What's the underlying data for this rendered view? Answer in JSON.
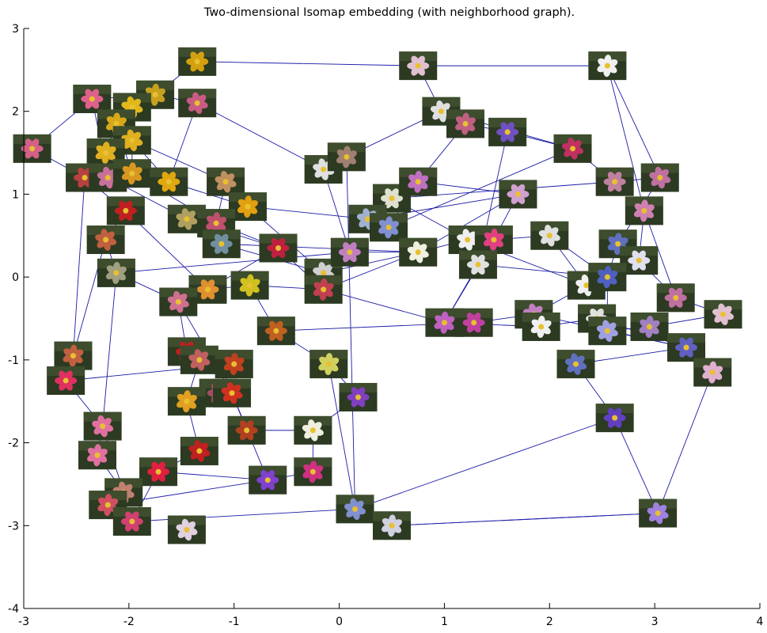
{
  "chart_data": {
    "type": "scatter",
    "title": "Two-dimensional Isomap embedding (with neighborhood graph).",
    "xlabel": "",
    "ylabel": "",
    "xlim": [
      -3,
      4
    ],
    "ylim": [
      -4,
      3
    ],
    "xticks": [
      -3,
      -2,
      -1,
      0,
      1,
      2,
      3,
      4
    ],
    "yticks": [
      -4,
      -3,
      -2,
      -1,
      0,
      1,
      2,
      3
    ],
    "grid": false,
    "marker_style": "flower-photo-thumbnails",
    "points": [
      {
        "x": -1.35,
        "y": 2.6,
        "color": "#d4a010"
      },
      {
        "x": -1.35,
        "y": 2.1,
        "color": "#c85c84"
      },
      {
        "x": -1.75,
        "y": 2.2,
        "color": "#c8a020"
      },
      {
        "x": -2.35,
        "y": 2.15,
        "color": "#e0608c"
      },
      {
        "x": -1.97,
        "y": 2.05,
        "color": "#e0b81c"
      },
      {
        "x": -2.12,
        "y": 1.85,
        "color": "#d8a818"
      },
      {
        "x": -2.92,
        "y": 1.55,
        "color": "#d46088"
      },
      {
        "x": -1.97,
        "y": 1.65,
        "color": "#e0b020"
      },
      {
        "x": -2.22,
        "y": 1.5,
        "color": "#e0b020"
      },
      {
        "x": -2.42,
        "y": 1.2,
        "color": "#b84040"
      },
      {
        "x": -2.2,
        "y": 1.2,
        "color": "#c8709c"
      },
      {
        "x": -1.97,
        "y": 1.25,
        "color": "#d89820"
      },
      {
        "x": -1.62,
        "y": 1.15,
        "color": "#e0a810"
      },
      {
        "x": -1.08,
        "y": 1.15,
        "color": "#c09060"
      },
      {
        "x": -0.87,
        "y": 0.85,
        "color": "#e0a010"
      },
      {
        "x": -2.03,
        "y": 0.8,
        "color": "#c02020"
      },
      {
        "x": -1.45,
        "y": 0.7,
        "color": "#b0a060"
      },
      {
        "x": -1.17,
        "y": 0.65,
        "color": "#c05070"
      },
      {
        "x": -1.12,
        "y": 0.4,
        "color": "#7090a0"
      },
      {
        "x": -2.22,
        "y": 0.45,
        "color": "#c06040"
      },
      {
        "x": -2.12,
        "y": 0.05,
        "color": "#a0a080"
      },
      {
        "x": -1.25,
        "y": -0.15,
        "color": "#e09030"
      },
      {
        "x": -1.53,
        "y": -0.3,
        "color": "#d07090"
      },
      {
        "x": -0.85,
        "y": -0.1,
        "color": "#d0c020"
      },
      {
        "x": -0.58,
        "y": 0.35,
        "color": "#c02040"
      },
      {
        "x": -0.15,
        "y": 0.05,
        "color": "#d0d0d0"
      },
      {
        "x": -0.15,
        "y": -0.15,
        "color": "#c04050"
      },
      {
        "x": -0.6,
        "y": -0.65,
        "color": "#c06020"
      },
      {
        "x": -0.15,
        "y": 1.3,
        "color": "#e0e0e0"
      },
      {
        "x": 0.07,
        "y": 1.45,
        "color": "#a08070"
      },
      {
        "x": 0.5,
        "y": 0.95,
        "color": "#e0e0d0"
      },
      {
        "x": 0.27,
        "y": 0.7,
        "color": "#a0b0d0"
      },
      {
        "x": 0.47,
        "y": 0.6,
        "color": "#8090d0"
      },
      {
        "x": 0.1,
        "y": 0.3,
        "color": "#c080c0"
      },
      {
        "x": 0.75,
        "y": 0.3,
        "color": "#f0f0e0"
      },
      {
        "x": 0.75,
        "y": 1.15,
        "color": "#c070c0"
      },
      {
        "x": 0.75,
        "y": 2.55,
        "color": "#e0c0d0"
      },
      {
        "x": 0.97,
        "y": 2.0,
        "color": "#e0e0e0"
      },
      {
        "x": 1.2,
        "y": 1.85,
        "color": "#c06080"
      },
      {
        "x": 1.6,
        "y": 1.75,
        "color": "#7050c0"
      },
      {
        "x": 2.22,
        "y": 1.55,
        "color": "#c03060"
      },
      {
        "x": 2.55,
        "y": 2.55,
        "color": "#f0f0f0"
      },
      {
        "x": 2.62,
        "y": 1.15,
        "color": "#c080a0"
      },
      {
        "x": 3.05,
        "y": 1.2,
        "color": "#c070a0"
      },
      {
        "x": 2.9,
        "y": 0.8,
        "color": "#d080b0"
      },
      {
        "x": 1.7,
        "y": 1.0,
        "color": "#d0a0d0"
      },
      {
        "x": 1.22,
        "y": 0.45,
        "color": "#f0f0f0"
      },
      {
        "x": 1.47,
        "y": 0.45,
        "color": "#e04080"
      },
      {
        "x": 1.32,
        "y": 0.15,
        "color": "#e0e0e0"
      },
      {
        "x": 2.0,
        "y": 0.5,
        "color": "#e0e0e0"
      },
      {
        "x": 2.65,
        "y": 0.4,
        "color": "#6070c0"
      },
      {
        "x": 2.85,
        "y": 0.2,
        "color": "#e0e0f0"
      },
      {
        "x": 2.35,
        "y": -0.1,
        "color": "#f0f0f0"
      },
      {
        "x": 2.55,
        "y": 0.0,
        "color": "#5060c0"
      },
      {
        "x": 3.2,
        "y": -0.25,
        "color": "#c070a0"
      },
      {
        "x": 3.65,
        "y": -0.45,
        "color": "#e0c0d0"
      },
      {
        "x": 1.0,
        "y": -0.55,
        "color": "#c060c0"
      },
      {
        "x": 1.28,
        "y": -0.55,
        "color": "#c040a0"
      },
      {
        "x": 1.85,
        "y": -0.45,
        "color": "#c080c0"
      },
      {
        "x": 1.92,
        "y": -0.6,
        "color": "#f0f0f0"
      },
      {
        "x": 2.45,
        "y": -0.5,
        "color": "#e0e0e0"
      },
      {
        "x": 2.55,
        "y": -0.65,
        "color": "#a0a0e0"
      },
      {
        "x": 2.95,
        "y": -0.6,
        "color": "#a080c0"
      },
      {
        "x": 3.3,
        "y": -0.85,
        "color": "#6060c0"
      },
      {
        "x": 2.25,
        "y": -1.05,
        "color": "#6070c0"
      },
      {
        "x": 3.55,
        "y": -1.15,
        "color": "#e0b0d0"
      },
      {
        "x": 2.62,
        "y": -1.7,
        "color": "#6040c0"
      },
      {
        "x": 3.03,
        "y": -2.85,
        "color": "#a080e0"
      },
      {
        "x": -2.53,
        "y": -0.95,
        "color": "#c06040"
      },
      {
        "x": -2.6,
        "y": -1.25,
        "color": "#e03060"
      },
      {
        "x": -2.25,
        "y": -1.8,
        "color": "#e070a0"
      },
      {
        "x": -2.3,
        "y": -2.15,
        "color": "#e070a0"
      },
      {
        "x": -1.45,
        "y": -0.9,
        "color": "#c02020"
      },
      {
        "x": -1.33,
        "y": -1.0,
        "color": "#c06060"
      },
      {
        "x": -1.0,
        "y": -1.05,
        "color": "#c04020"
      },
      {
        "x": -1.15,
        "y": -1.4,
        "color": "#a05060"
      },
      {
        "x": -1.02,
        "y": -1.4,
        "color": "#d03020"
      },
      {
        "x": -1.45,
        "y": -1.5,
        "color": "#e0a020"
      },
      {
        "x": -0.88,
        "y": -1.85,
        "color": "#b04020"
      },
      {
        "x": -1.33,
        "y": -2.1,
        "color": "#c02020"
      },
      {
        "x": -0.1,
        "y": -1.05,
        "color": "#d0d060"
      },
      {
        "x": 0.18,
        "y": -1.45,
        "color": "#8040c0"
      },
      {
        "x": -0.25,
        "y": -1.85,
        "color": "#f0f0e0"
      },
      {
        "x": -0.25,
        "y": -2.35,
        "color": "#d03080"
      },
      {
        "x": -0.68,
        "y": -2.45,
        "color": "#8040d0"
      },
      {
        "x": 0.15,
        "y": -2.8,
        "color": "#8090d0"
      },
      {
        "x": 0.5,
        "y": -3.0,
        "color": "#d0d0e0"
      },
      {
        "x": -1.72,
        "y": -2.35,
        "color": "#e02040"
      },
      {
        "x": -2.05,
        "y": -2.6,
        "color": "#c08070"
      },
      {
        "x": -2.2,
        "y": -2.75,
        "color": "#d05060"
      },
      {
        "x": -1.97,
        "y": -2.95,
        "color": "#d04070"
      },
      {
        "x": -1.45,
        "y": -3.05,
        "color": "#e0d0e0"
      }
    ],
    "edges": [
      [
        0,
        2
      ],
      [
        0,
        36
      ],
      [
        1,
        2
      ],
      [
        1,
        12
      ],
      [
        1,
        28
      ],
      [
        2,
        3
      ],
      [
        2,
        5
      ],
      [
        3,
        6
      ],
      [
        4,
        7
      ],
      [
        4,
        11
      ],
      [
        5,
        8
      ],
      [
        6,
        9
      ],
      [
        7,
        12
      ],
      [
        8,
        10
      ],
      [
        9,
        15
      ],
      [
        9,
        68
      ],
      [
        10,
        16
      ],
      [
        11,
        17
      ],
      [
        12,
        14
      ],
      [
        13,
        17
      ],
      [
        14,
        25
      ],
      [
        15,
        19
      ],
      [
        16,
        18
      ],
      [
        17,
        24
      ],
      [
        18,
        25
      ],
      [
        19,
        68
      ],
      [
        20,
        22
      ],
      [
        20,
        33
      ],
      [
        21,
        23
      ],
      [
        21,
        24
      ],
      [
        22,
        72
      ],
      [
        23,
        27
      ],
      [
        24,
        26
      ],
      [
        25,
        33
      ],
      [
        26,
        34
      ],
      [
        27,
        80
      ],
      [
        28,
        29
      ],
      [
        28,
        33
      ],
      [
        29,
        85
      ],
      [
        30,
        31
      ],
      [
        30,
        46
      ],
      [
        31,
        32
      ],
      [
        32,
        35
      ],
      [
        33,
        34
      ],
      [
        34,
        46
      ],
      [
        35,
        38
      ],
      [
        35,
        45
      ],
      [
        36,
        37
      ],
      [
        36,
        41
      ],
      [
        37,
        38
      ],
      [
        38,
        39
      ],
      [
        39,
        40
      ],
      [
        39,
        48
      ],
      [
        40,
        42
      ],
      [
        41,
        43
      ],
      [
        41,
        44
      ],
      [
        42,
        43
      ],
      [
        42,
        30
      ],
      [
        43,
        50
      ],
      [
        44,
        54
      ],
      [
        45,
        47
      ],
      [
        46,
        47
      ],
      [
        47,
        49
      ],
      [
        48,
        56
      ],
      [
        49,
        53
      ],
      [
        50,
        51
      ],
      [
        51,
        54
      ],
      [
        52,
        58
      ],
      [
        53,
        61
      ],
      [
        54,
        55
      ],
      [
        55,
        62
      ],
      [
        56,
        57
      ],
      [
        57,
        58
      ],
      [
        57,
        27
      ],
      [
        58,
        59
      ],
      [
        59,
        60
      ],
      [
        60,
        63
      ],
      [
        61,
        62
      ],
      [
        62,
        65
      ],
      [
        63,
        64
      ],
      [
        64,
        66
      ],
      [
        65,
        67
      ],
      [
        66,
        67
      ],
      [
        66,
        85
      ],
      [
        67,
        86
      ],
      [
        68,
        69
      ],
      [
        69,
        70
      ],
      [
        69,
        74
      ],
      [
        70,
        71
      ],
      [
        70,
        88
      ],
      [
        71,
        88
      ],
      [
        72,
        73
      ],
      [
        73,
        74
      ],
      [
        73,
        77
      ],
      [
        74,
        75
      ],
      [
        75,
        76
      ],
      [
        76,
        78
      ],
      [
        76,
        84
      ],
      [
        77,
        79
      ],
      [
        78,
        82
      ],
      [
        79,
        87
      ],
      [
        80,
        81
      ],
      [
        80,
        85
      ],
      [
        81,
        82
      ],
      [
        82,
        83
      ],
      [
        83,
        84
      ],
      [
        84,
        87
      ],
      [
        85,
        86
      ],
      [
        86,
        67
      ],
      [
        87,
        90
      ],
      [
        88,
        89
      ],
      [
        89,
        84
      ],
      [
        90,
        85
      ],
      [
        3,
        10
      ],
      [
        5,
        11
      ],
      [
        7,
        13
      ],
      [
        14,
        31
      ],
      [
        15,
        21
      ],
      [
        16,
        24
      ],
      [
        18,
        34
      ],
      [
        19,
        20
      ],
      [
        20,
        70
      ],
      [
        22,
        76
      ],
      [
        23,
        26
      ],
      [
        26,
        56
      ],
      [
        29,
        37
      ],
      [
        31,
        45
      ],
      [
        32,
        40
      ],
      [
        34,
        45
      ],
      [
        37,
        40
      ],
      [
        44,
        51
      ],
      [
        46,
        52
      ],
      [
        48,
        53
      ],
      [
        49,
        52
      ],
      [
        50,
        53
      ],
      [
        56,
        59
      ],
      [
        58,
        63
      ],
      [
        61,
        63
      ],
      [
        47,
        56
      ],
      [
        25,
        34
      ]
    ]
  }
}
